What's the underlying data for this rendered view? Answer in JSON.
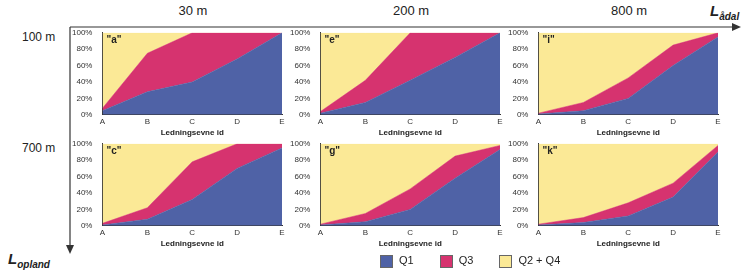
{
  "column_labels": [
    "30 m",
    "200 m",
    "800 m"
  ],
  "row_labels": [
    "100 m",
    "700 m"
  ],
  "x_direction_label": {
    "text": "L",
    "subscript": "ådal"
  },
  "y_direction_label": {
    "text": "L",
    "subscript": "opland"
  },
  "legend": "bottom",
  "chart_data": [
    {
      "type": "area",
      "title": "\"a\"",
      "x_label": "Ledningsevne id",
      "categories": [
        "A",
        "B",
        "C",
        "D",
        "E"
      ],
      "stacked": true,
      "grid": false,
      "ylim": [
        0,
        100
      ],
      "yticks": [
        {
          "value": 0,
          "label": "0%"
        },
        {
          "value": 20,
          "label": "20%"
        },
        {
          "value": 40,
          "label": "40%"
        },
        {
          "value": 60,
          "label": "60%"
        },
        {
          "value": 80,
          "label": "80%"
        },
        {
          "value": 100,
          "label": "100%"
        }
      ],
      "series": [
        {
          "name": "Q1",
          "color": "#4f62a6",
          "values": [
            5,
            28,
            40,
            68,
            100
          ]
        },
        {
          "name": "Q3",
          "color": "#d6336f",
          "values": [
            3,
            47,
            60,
            32,
            0
          ]
        },
        {
          "name": "Q2 + Q4",
          "color": "#fbe996",
          "values": [
            92,
            25,
            0,
            0,
            0
          ]
        }
      ]
    },
    {
      "type": "area",
      "title": "\"e\"",
      "x_label": "Ledningsevne id",
      "categories": [
        "A",
        "B",
        "C",
        "D",
        "E"
      ],
      "stacked": true,
      "grid": false,
      "ylim": [
        0,
        100
      ],
      "yticks": [
        {
          "value": 0,
          "label": "0%"
        },
        {
          "value": 20,
          "label": "20%"
        },
        {
          "value": 40,
          "label": "40%"
        },
        {
          "value": 60,
          "label": "60%"
        },
        {
          "value": 80,
          "label": "80%"
        },
        {
          "value": 100,
          "label": "100%"
        }
      ],
      "series": [
        {
          "name": "Q1",
          "color": "#4f62a6",
          "values": [
            2,
            15,
            42,
            70,
            100
          ]
        },
        {
          "name": "Q3",
          "color": "#d6336f",
          "values": [
            2,
            27,
            58,
            30,
            0
          ]
        },
        {
          "name": "Q2 + Q4",
          "color": "#fbe996",
          "values": [
            96,
            58,
            0,
            0,
            0
          ]
        }
      ]
    },
    {
      "type": "area",
      "title": "\"i\"",
      "x_label": "Ledningsevne id",
      "categories": [
        "A",
        "B",
        "C",
        "D",
        "E"
      ],
      "stacked": true,
      "grid": false,
      "ylim": [
        0,
        100
      ],
      "yticks": [
        {
          "value": 0,
          "label": "0%"
        },
        {
          "value": 20,
          "label": "20%"
        },
        {
          "value": 40,
          "label": "40%"
        },
        {
          "value": 60,
          "label": "60%"
        },
        {
          "value": 80,
          "label": "80%"
        },
        {
          "value": 100,
          "label": "100%"
        }
      ],
      "series": [
        {
          "name": "Q1",
          "color": "#4f62a6",
          "values": [
            1,
            5,
            20,
            60,
            95
          ]
        },
        {
          "name": "Q3",
          "color": "#d6336f",
          "values": [
            1,
            10,
            25,
            25,
            5
          ]
        },
        {
          "name": "Q2 + Q4",
          "color": "#fbe996",
          "values": [
            98,
            85,
            55,
            15,
            0
          ]
        }
      ]
    },
    {
      "type": "area",
      "title": "\"c\"",
      "x_label": "Ledningsevne id",
      "categories": [
        "A",
        "B",
        "C",
        "D",
        "E"
      ],
      "stacked": true,
      "grid": false,
      "ylim": [
        0,
        100
      ],
      "yticks": [
        {
          "value": 0,
          "label": "0%"
        },
        {
          "value": 20,
          "label": "20%"
        },
        {
          "value": 40,
          "label": "40%"
        },
        {
          "value": 60,
          "label": "60%"
        },
        {
          "value": 80,
          "label": "80%"
        },
        {
          "value": 100,
          "label": "100%"
        }
      ],
      "series": [
        {
          "name": "Q1",
          "color": "#4f62a6",
          "values": [
            1,
            8,
            32,
            70,
            95
          ]
        },
        {
          "name": "Q3",
          "color": "#d6336f",
          "values": [
            2,
            14,
            46,
            30,
            5
          ]
        },
        {
          "name": "Q2 + Q4",
          "color": "#fbe996",
          "values": [
            97,
            78,
            22,
            0,
            0
          ]
        }
      ]
    },
    {
      "type": "area",
      "title": "\"g\"",
      "x_label": "Ledningsevne id",
      "categories": [
        "A",
        "B",
        "C",
        "D",
        "E"
      ],
      "stacked": true,
      "grid": false,
      "ylim": [
        0,
        100
      ],
      "yticks": [
        {
          "value": 0,
          "label": "0%"
        },
        {
          "value": 20,
          "label": "20%"
        },
        {
          "value": 40,
          "label": "40%"
        },
        {
          "value": 60,
          "label": "60%"
        },
        {
          "value": 80,
          "label": "80%"
        },
        {
          "value": 100,
          "label": "100%"
        }
      ],
      "series": [
        {
          "name": "Q1",
          "color": "#4f62a6",
          "values": [
            1,
            5,
            20,
            58,
            93
          ]
        },
        {
          "name": "Q3",
          "color": "#d6336f",
          "values": [
            1,
            10,
            25,
            27,
            5
          ]
        },
        {
          "name": "Q2 + Q4",
          "color": "#fbe996",
          "values": [
            98,
            85,
            55,
            15,
            2
          ]
        }
      ]
    },
    {
      "type": "area",
      "title": "\"k\"",
      "x_label": "Ledningsevne id",
      "categories": [
        "A",
        "B",
        "C",
        "D",
        "E"
      ],
      "stacked": true,
      "grid": false,
      "ylim": [
        0,
        100
      ],
      "yticks": [
        {
          "value": 0,
          "label": "0%"
        },
        {
          "value": 20,
          "label": "20%"
        },
        {
          "value": 40,
          "label": "40%"
        },
        {
          "value": 60,
          "label": "60%"
        },
        {
          "value": 80,
          "label": "80%"
        },
        {
          "value": 100,
          "label": "100%"
        }
      ],
      "series": [
        {
          "name": "Q1",
          "color": "#4f62a6",
          "values": [
            1,
            4,
            12,
            35,
            90
          ]
        },
        {
          "name": "Q3",
          "color": "#d6336f",
          "values": [
            1,
            6,
            16,
            17,
            8
          ]
        },
        {
          "name": "Q2 + Q4",
          "color": "#fbe996",
          "values": [
            98,
            90,
            72,
            48,
            2
          ]
        }
      ]
    }
  ]
}
